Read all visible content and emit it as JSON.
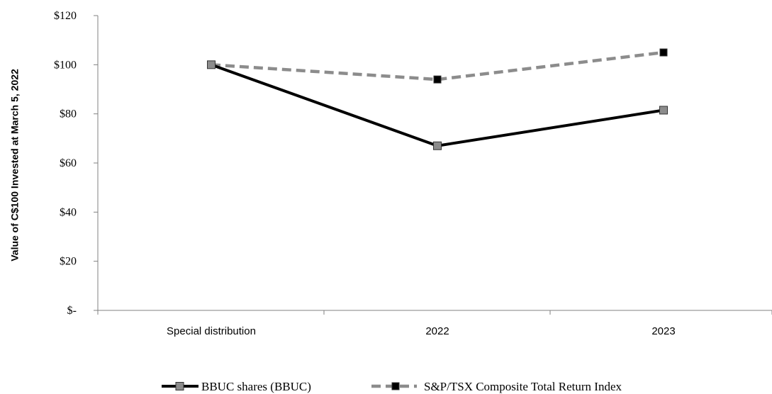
{
  "chart_data": {
    "type": "line",
    "title": "",
    "xlabel": "",
    "ylabel": "Value of C$100 Invested at March 5, 2022",
    "categories": [
      "Special distribution",
      "2022",
      "2023"
    ],
    "ylim": [
      0,
      120
    ],
    "yticks": [
      {
        "value": 0,
        "label": "$-"
      },
      {
        "value": 20,
        "label": "$20"
      },
      {
        "value": 40,
        "label": "$40"
      },
      {
        "value": 60,
        "label": "$60"
      },
      {
        "value": 80,
        "label": "$80"
      },
      {
        "value": 100,
        "label": "$100"
      },
      {
        "value": 120,
        "label": "$120"
      }
    ],
    "grid": false,
    "legend_position": "bottom",
    "series": [
      {
        "name": "BBUC shares (BBUC)",
        "values": [
          100,
          67,
          81.5
        ],
        "color": "#000000",
        "marker_color": "#8c8c8c",
        "line_style": "solid"
      },
      {
        "name": "S&P/TSX Composite Total Return Index",
        "values": [
          100,
          94,
          105
        ],
        "color": "#8c8c8c",
        "marker_color": "#000000",
        "line_style": "dashed"
      }
    ]
  }
}
